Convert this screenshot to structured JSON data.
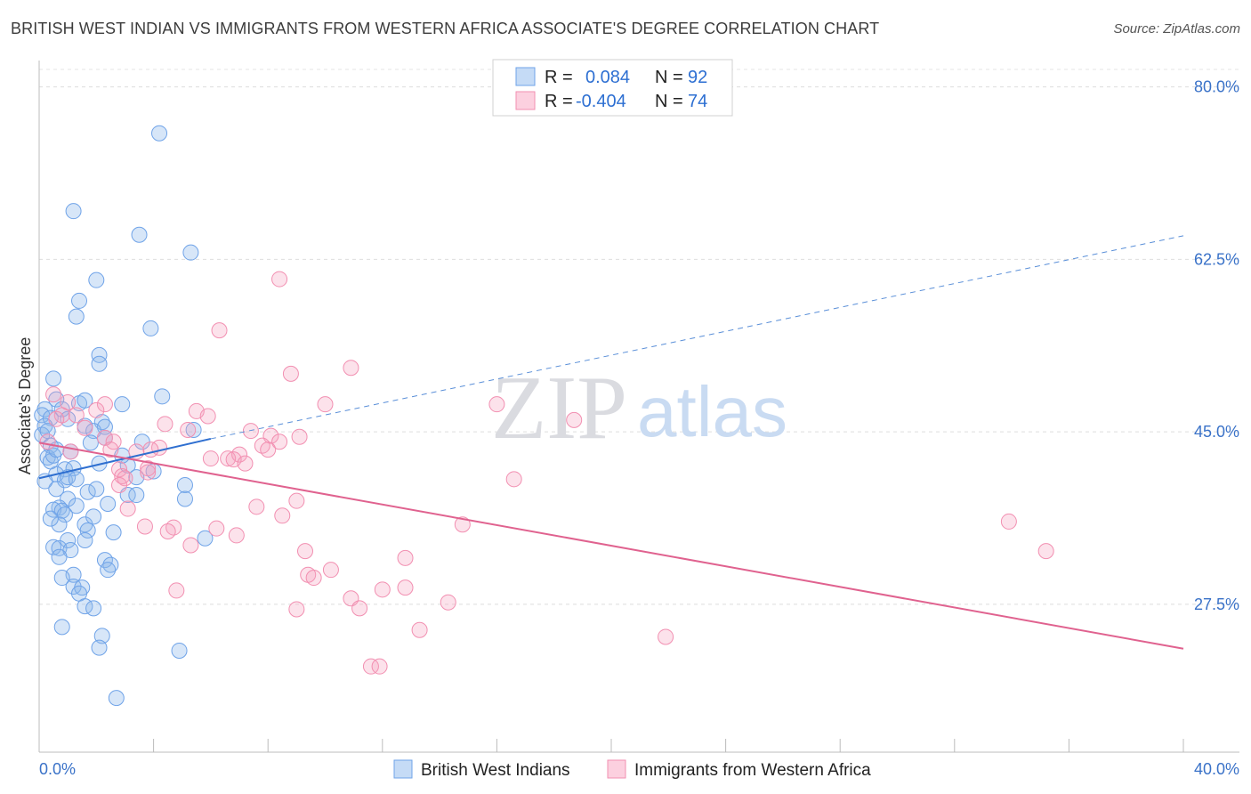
{
  "title": "BRITISH WEST INDIAN VS IMMIGRANTS FROM WESTERN AFRICA ASSOCIATE'S DEGREE CORRELATION CHART",
  "source": "Source: ZipAtlas.com",
  "watermark": {
    "zip": "ZIP",
    "atlas": "atlas"
  },
  "legend_box": [
    {
      "r_label": "R =",
      "r_value": "0.084",
      "n_label": "N =",
      "n_value": "92"
    },
    {
      "r_label": "R =",
      "r_value": "-0.404",
      "n_label": "N =",
      "n_value": "74"
    }
  ],
  "chart_data": {
    "type": "scatter",
    "title": "BRITISH WEST INDIAN VS IMMIGRANTS FROM WESTERN AFRICA ASSOCIATE'S DEGREE CORRELATION CHART",
    "xlabel": "",
    "ylabel": "Associate's Degree",
    "xlim": [
      0,
      40
    ],
    "ylim": [
      12.5,
      82.5
    ],
    "x_tick_labels": [
      {
        "value": 0,
        "label": "0.0%"
      },
      {
        "value": 40,
        "label": "40.0%"
      }
    ],
    "y_tick_labels": [
      {
        "value": 80,
        "label": "80.0%"
      },
      {
        "value": 62.5,
        "label": "62.5%"
      },
      {
        "value": 45,
        "label": "45.0%"
      },
      {
        "value": 27.5,
        "label": "27.5%"
      }
    ],
    "grid": true,
    "legend_position": "bottom",
    "series": [
      {
        "name": "British West Indians",
        "color": "#6fa3e8",
        "line_color": "#2f6fd0",
        "r": 0.084,
        "n": 92,
        "trend": {
          "x": [
            0,
            6
          ],
          "y": [
            40.3,
            44.3
          ]
        },
        "trend_extension": {
          "x": [
            6,
            40
          ],
          "y": [
            44.3,
            64.9
          ]
        },
        "points": [
          [
            4.2,
            75.3
          ],
          [
            1.2,
            67.4
          ],
          [
            3.5,
            65.0
          ],
          [
            5.3,
            63.2
          ],
          [
            2.0,
            60.4
          ],
          [
            1.4,
            58.3
          ],
          [
            1.3,
            56.7
          ],
          [
            3.9,
            55.5
          ],
          [
            2.1,
            52.8
          ],
          [
            2.1,
            51.9
          ],
          [
            0.5,
            50.4
          ],
          [
            4.3,
            48.6
          ],
          [
            0.2,
            47.3
          ],
          [
            0.6,
            48.3
          ],
          [
            0.8,
            47.3
          ],
          [
            1.4,
            47.9
          ],
          [
            1.6,
            48.2
          ],
          [
            2.9,
            47.8
          ],
          [
            0.1,
            46.7
          ],
          [
            0.4,
            46.4
          ],
          [
            0.2,
            45.6
          ],
          [
            1.0,
            46.3
          ],
          [
            1.6,
            45.6
          ],
          [
            2.2,
            46.0
          ],
          [
            2.3,
            45.5
          ],
          [
            1.9,
            45.1
          ],
          [
            5.4,
            45.2
          ],
          [
            2.3,
            44.4
          ],
          [
            0.1,
            44.7
          ],
          [
            0.4,
            43.6
          ],
          [
            0.3,
            42.4
          ],
          [
            0.4,
            42.0
          ],
          [
            0.5,
            42.6
          ],
          [
            2.1,
            41.8
          ],
          [
            3.1,
            41.6
          ],
          [
            0.9,
            41.2
          ],
          [
            1.2,
            41.3
          ],
          [
            0.6,
            40.7
          ],
          [
            0.9,
            40.1
          ],
          [
            1.0,
            40.4
          ],
          [
            1.3,
            40.2
          ],
          [
            3.4,
            40.4
          ],
          [
            5.1,
            39.6
          ],
          [
            0.6,
            39.2
          ],
          [
            1.7,
            38.9
          ],
          [
            3.1,
            38.6
          ],
          [
            3.4,
            38.6
          ],
          [
            5.1,
            38.2
          ],
          [
            1.0,
            38.2
          ],
          [
            0.7,
            37.3
          ],
          [
            1.3,
            37.5
          ],
          [
            2.4,
            37.7
          ],
          [
            0.5,
            37.1
          ],
          [
            0.8,
            37.0
          ],
          [
            0.9,
            36.6
          ],
          [
            0.7,
            35.6
          ],
          [
            1.6,
            35.6
          ],
          [
            1.7,
            35.0
          ],
          [
            1.6,
            34.0
          ],
          [
            1.0,
            34.0
          ],
          [
            5.8,
            34.2
          ],
          [
            0.5,
            33.3
          ],
          [
            0.7,
            33.2
          ],
          [
            1.1,
            33.0
          ],
          [
            0.7,
            32.3
          ],
          [
            2.3,
            32.0
          ],
          [
            2.5,
            31.5
          ],
          [
            2.4,
            31.0
          ],
          [
            1.2,
            30.5
          ],
          [
            0.8,
            30.2
          ],
          [
            1.2,
            29.3
          ],
          [
            1.5,
            29.2
          ],
          [
            1.4,
            28.6
          ],
          [
            1.6,
            27.3
          ],
          [
            1.9,
            27.1
          ],
          [
            0.8,
            25.2
          ],
          [
            2.2,
            24.3
          ],
          [
            2.1,
            23.1
          ],
          [
            4.9,
            22.8
          ],
          [
            2.7,
            18.0
          ],
          [
            0.2,
            40.0
          ],
          [
            0.3,
            45.1
          ],
          [
            1.8,
            43.9
          ],
          [
            2.0,
            39.2
          ],
          [
            0.4,
            36.2
          ],
          [
            2.9,
            42.6
          ],
          [
            4.0,
            41.0
          ],
          [
            1.1,
            43.0
          ],
          [
            0.6,
            43.2
          ],
          [
            3.6,
            44.0
          ],
          [
            1.9,
            36.4
          ],
          [
            2.6,
            34.8
          ]
        ]
      },
      {
        "name": "Immigrants from Western Africa",
        "color": "#f28fb1",
        "line_color": "#e0628f",
        "r": -0.404,
        "n": 74,
        "trend": {
          "x": [
            0,
            40
          ],
          "y": [
            43.9,
            23.0
          ]
        },
        "points": [
          [
            8.4,
            60.5
          ],
          [
            6.3,
            55.3
          ],
          [
            10.9,
            51.5
          ],
          [
            8.8,
            50.9
          ],
          [
            0.5,
            48.8
          ],
          [
            1.0,
            48.0
          ],
          [
            2.3,
            47.8
          ],
          [
            10.0,
            47.8
          ],
          [
            16.0,
            47.8
          ],
          [
            5.5,
            47.1
          ],
          [
            5.9,
            46.6
          ],
          [
            18.7,
            46.2
          ],
          [
            0.8,
            46.7
          ],
          [
            1.3,
            46.7
          ],
          [
            4.4,
            45.8
          ],
          [
            1.6,
            45.4
          ],
          [
            5.2,
            45.2
          ],
          [
            7.4,
            45.1
          ],
          [
            8.1,
            44.6
          ],
          [
            2.3,
            44.4
          ],
          [
            2.6,
            44.0
          ],
          [
            8.4,
            44.0
          ],
          [
            7.8,
            43.6
          ],
          [
            4.2,
            43.4
          ],
          [
            3.9,
            43.2
          ],
          [
            2.5,
            43.2
          ],
          [
            3.4,
            43.0
          ],
          [
            8.0,
            43.2
          ],
          [
            1.1,
            43.0
          ],
          [
            7.0,
            42.7
          ],
          [
            6.0,
            42.3
          ],
          [
            6.6,
            42.3
          ],
          [
            6.8,
            42.2
          ],
          [
            7.2,
            41.8
          ],
          [
            2.8,
            41.2
          ],
          [
            3.8,
            41.3
          ],
          [
            3.8,
            40.9
          ],
          [
            2.9,
            40.5
          ],
          [
            3.0,
            40.3
          ],
          [
            16.6,
            40.2
          ],
          [
            2.8,
            39.6
          ],
          [
            9.0,
            38.0
          ],
          [
            7.6,
            37.4
          ],
          [
            3.1,
            37.2
          ],
          [
            8.5,
            36.5
          ],
          [
            14.8,
            35.6
          ],
          [
            33.9,
            35.9
          ],
          [
            3.7,
            35.4
          ],
          [
            4.7,
            35.3
          ],
          [
            6.2,
            35.2
          ],
          [
            4.5,
            34.9
          ],
          [
            6.9,
            34.5
          ],
          [
            5.3,
            33.5
          ],
          [
            9.3,
            32.9
          ],
          [
            12.8,
            32.2
          ],
          [
            35.2,
            32.9
          ],
          [
            10.2,
            31.0
          ],
          [
            9.4,
            30.5
          ],
          [
            9.6,
            30.2
          ],
          [
            12.0,
            29.0
          ],
          [
            12.8,
            29.2
          ],
          [
            4.8,
            28.9
          ],
          [
            10.9,
            28.1
          ],
          [
            11.2,
            27.1
          ],
          [
            14.3,
            27.7
          ],
          [
            9.0,
            27.0
          ],
          [
            13.3,
            24.9
          ],
          [
            21.9,
            24.2
          ],
          [
            11.6,
            21.2
          ],
          [
            11.9,
            21.2
          ],
          [
            0.3,
            44.0
          ],
          [
            2.0,
            47.2
          ],
          [
            9.1,
            44.5
          ],
          [
            0.6,
            46.3
          ]
        ]
      }
    ]
  }
}
